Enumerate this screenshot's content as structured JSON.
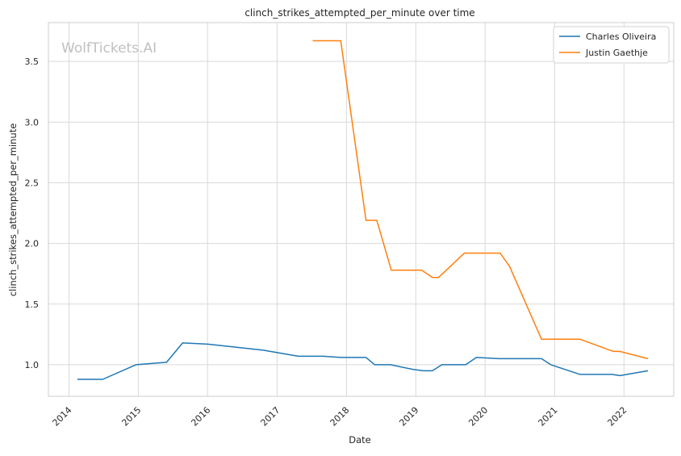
{
  "chart_data": {
    "type": "line",
    "title": "clinch_strikes_attempted_per_minute over time",
    "xlabel": "Date",
    "ylabel": "clinch_strikes_attempted_per_minute",
    "watermark": "WolfTickets.AI",
    "xlim": [
      "2013-09-15",
      "2022-09-20"
    ],
    "ylim": [
      0.74,
      3.82
    ],
    "x_ticks": [
      "2014",
      "2015",
      "2016",
      "2017",
      "2018",
      "2019",
      "2020",
      "2021",
      "2022"
    ],
    "y_ticks": [
      "1.0",
      "1.5",
      "2.0",
      "2.5",
      "3.0",
      "3.5"
    ],
    "grid": true,
    "legend_position": "top-right",
    "series": [
      {
        "name": "Charles Oliveira",
        "color": "#1f77b4",
        "points": [
          {
            "x": "2014-02-15",
            "y": 0.88
          },
          {
            "x": "2014-06-28",
            "y": 0.88
          },
          {
            "x": "2014-12-20",
            "y": 1.0
          },
          {
            "x": "2015-05-30",
            "y": 1.02
          },
          {
            "x": "2015-08-23",
            "y": 1.18
          },
          {
            "x": "2016-01-01",
            "y": 1.17
          },
          {
            "x": "2016-10-20",
            "y": 1.12
          },
          {
            "x": "2017-04-22",
            "y": 1.07
          },
          {
            "x": "2017-09-01",
            "y": 1.07
          },
          {
            "x": "2017-12-02",
            "y": 1.06
          },
          {
            "x": "2018-04-14",
            "y": 1.06
          },
          {
            "x": "2018-05-30",
            "y": 1.0
          },
          {
            "x": "2018-08-20",
            "y": 1.0
          },
          {
            "x": "2018-12-22",
            "y": 0.96
          },
          {
            "x": "2019-02-10",
            "y": 0.95
          },
          {
            "x": "2019-03-30",
            "y": 0.95
          },
          {
            "x": "2019-05-18",
            "y": 1.0
          },
          {
            "x": "2019-09-21",
            "y": 1.0
          },
          {
            "x": "2019-11-16",
            "y": 1.06
          },
          {
            "x": "2020-03-14",
            "y": 1.05
          },
          {
            "x": "2020-10-24",
            "y": 1.05
          },
          {
            "x": "2020-12-12",
            "y": 1.0
          },
          {
            "x": "2021-05-15",
            "y": 0.92
          },
          {
            "x": "2021-10-30",
            "y": 0.92
          },
          {
            "x": "2021-12-11",
            "y": 0.91
          },
          {
            "x": "2022-05-07",
            "y": 0.95
          }
        ]
      },
      {
        "name": "Justin Gaethje",
        "color": "#ff7f0e",
        "points": [
          {
            "x": "2017-07-07",
            "y": 3.67
          },
          {
            "x": "2017-12-02",
            "y": 3.67
          },
          {
            "x": "2018-04-14",
            "y": 2.19
          },
          {
            "x": "2018-06-10",
            "y": 2.19
          },
          {
            "x": "2018-08-25",
            "y": 1.78
          },
          {
            "x": "2019-02-01",
            "y": 1.78
          },
          {
            "x": "2019-03-30",
            "y": 1.72
          },
          {
            "x": "2019-05-01",
            "y": 1.72
          },
          {
            "x": "2019-09-14",
            "y": 1.92
          },
          {
            "x": "2020-03-20",
            "y": 1.92
          },
          {
            "x": "2020-05-09",
            "y": 1.81
          },
          {
            "x": "2020-10-24",
            "y": 1.21
          },
          {
            "x": "2021-05-15",
            "y": 1.21
          },
          {
            "x": "2021-11-06",
            "y": 1.11
          },
          {
            "x": "2021-12-10",
            "y": 1.11
          },
          {
            "x": "2022-05-07",
            "y": 1.05
          }
        ]
      }
    ]
  }
}
